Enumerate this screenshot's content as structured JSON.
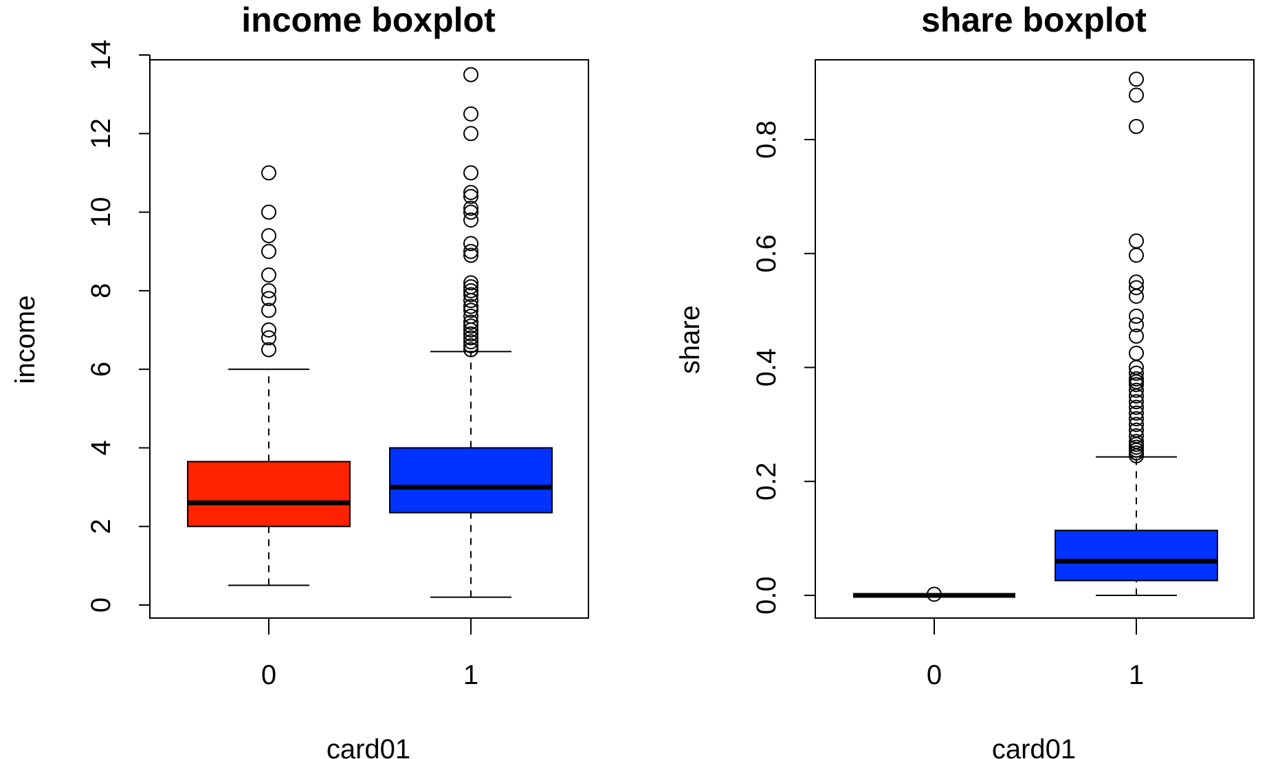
{
  "chart_data": [
    {
      "type": "boxplot",
      "title": "income boxplot",
      "xlabel": "card01",
      "ylabel": "income",
      "ylim": [
        0,
        14
      ],
      "yticks": [
        "0",
        "2",
        "4",
        "6",
        "8",
        "10",
        "12",
        "14"
      ],
      "categories": [
        "0",
        "1"
      ],
      "series": [
        {
          "category": "0",
          "color": "#ff2200",
          "whisker_low": 0.5,
          "q1": 2.0,
          "median": 2.6,
          "q3": 3.65,
          "whisker_high": 6.0,
          "outliers": [
            6.5,
            6.8,
            7.0,
            7.5,
            7.8,
            8.0,
            8.4,
            9.0,
            9.4,
            10.0,
            11.0
          ]
        },
        {
          "category": "1",
          "color": "#0033ff",
          "whisker_low": 0.2,
          "q1": 2.35,
          "median": 3.0,
          "q3": 4.0,
          "whisker_high": 6.45,
          "outliers": [
            6.5,
            6.6,
            6.7,
            6.8,
            6.9,
            7.0,
            7.1,
            7.2,
            7.35,
            7.5,
            7.6,
            7.75,
            7.9,
            8.0,
            8.1,
            8.2,
            8.9,
            9.0,
            9.2,
            9.8,
            10.0,
            10.1,
            10.4,
            10.5,
            11.0,
            12.0,
            12.5,
            13.5
          ]
        }
      ]
    },
    {
      "type": "boxplot",
      "title": "share boxplot",
      "xlabel": "card01",
      "ylabel": "share",
      "ylim": [
        0,
        0.9
      ],
      "yticks": [
        "0.0",
        "0.2",
        "0.4",
        "0.6",
        "0.8"
      ],
      "categories": [
        "0",
        "1"
      ],
      "series": [
        {
          "category": "0",
          "color": "#000000",
          "whisker_low": 0.0,
          "q1": 0.0,
          "median": 0.0,
          "q3": 0.0,
          "whisker_high": 0.0,
          "outliers": [
            0.002
          ]
        },
        {
          "category": "1",
          "color": "#0033ff",
          "whisker_low": 0.0,
          "q1": 0.026,
          "median": 0.06,
          "q3": 0.114,
          "whisker_high": 0.243,
          "outliers": [
            0.245,
            0.25,
            0.255,
            0.26,
            0.265,
            0.27,
            0.28,
            0.29,
            0.3,
            0.31,
            0.32,
            0.33,
            0.34,
            0.35,
            0.36,
            0.37,
            0.375,
            0.38,
            0.39,
            0.4,
            0.425,
            0.455,
            0.475,
            0.49,
            0.525,
            0.54,
            0.55,
            0.597,
            0.622,
            0.823,
            0.878,
            0.906
          ]
        }
      ]
    }
  ]
}
